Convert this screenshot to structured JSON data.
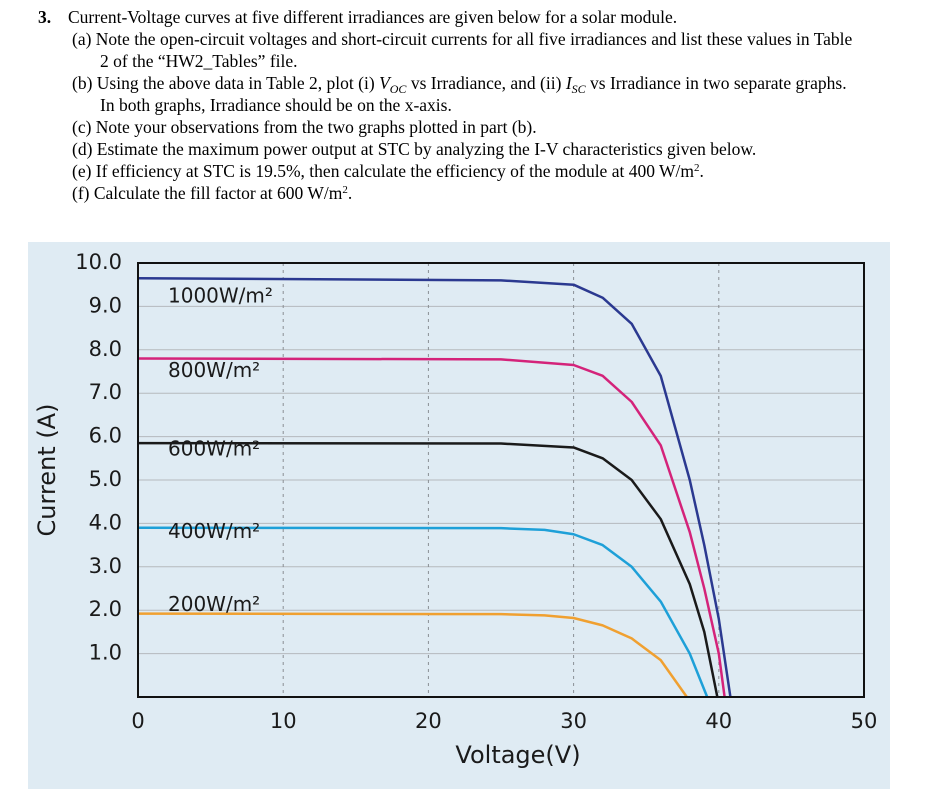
{
  "question": {
    "number": "3.",
    "intro": "Current-Voltage curves at five different irradiances are given below for a solar module.",
    "items": [
      [
        "(a) Note the open-circuit voltages and short-circuit currents for all five irradiances and list these values in Table 2 of the “HW2_Tables” file."
      ],
      [
        "(b) Using the above data in Table 2, plot (i) ",
        "V",
        "OC",
        " vs Irradiance, and (ii) ",
        "I",
        "SC",
        " vs Irradiance in two separate graphs. In both graphs, Irradiance should be on the x-axis."
      ],
      [
        "(c) Note your observations from the two graphs plotted in part (b)."
      ],
      [
        "(d) Estimate the maximum power output at STC by analyzing the I-V characteristics given below."
      ],
      [
        "(e) If efficiency at STC is 19.5%, then calculate the efficiency of the module at 400 W/m",
        "2",
        "."
      ],
      [
        "(f) Calculate the fill factor at 600 W/m",
        "2",
        "."
      ]
    ]
  },
  "chart_data": {
    "type": "line",
    "x_label": "Voltage(V)",
    "y_label": "Current (A)",
    "xlim": [
      0,
      50
    ],
    "ylim": [
      0,
      10
    ],
    "xticks": [
      0,
      10,
      20,
      30,
      40,
      50
    ],
    "yticks": [
      {
        "value": 1,
        "label": "1.0"
      },
      {
        "value": 2,
        "label": "2.0"
      },
      {
        "value": 3,
        "label": "3.0"
      },
      {
        "value": 4,
        "label": "4.0"
      },
      {
        "value": 5,
        "label": "5.0"
      },
      {
        "value": 6,
        "label": "6.0"
      },
      {
        "value": 7,
        "label": "7.0"
      },
      {
        "value": 8,
        "label": "8.0"
      },
      {
        "value": 9,
        "label": "9.0"
      },
      {
        "value": 10,
        "label": "10.0"
      }
    ],
    "grid": true,
    "series": [
      {
        "name": "1000W/m²",
        "color": "#2b3990",
        "x": [
          0,
          25,
          30,
          32,
          34,
          36,
          38,
          39,
          40,
          40.8
        ],
        "values": [
          9.65,
          9.6,
          9.5,
          9.2,
          8.6,
          7.4,
          5.0,
          3.5,
          1.8,
          0
        ]
      },
      {
        "name": "800W/m²",
        "color": "#d4237a",
        "x": [
          0,
          25,
          30,
          32,
          34,
          36,
          38,
          39,
          40,
          40.4
        ],
        "values": [
          7.8,
          7.78,
          7.65,
          7.4,
          6.8,
          5.8,
          3.8,
          2.5,
          1.0,
          0
        ]
      },
      {
        "name": "600W/m²",
        "color": "#1a1a1a",
        "x": [
          0,
          25,
          30,
          32,
          34,
          36,
          38,
          39,
          39.9
        ],
        "values": [
          5.85,
          5.84,
          5.75,
          5.5,
          5.0,
          4.1,
          2.6,
          1.5,
          0
        ]
      },
      {
        "name": "400W/m²",
        "color": "#1ea0d8",
        "x": [
          0,
          25,
          28,
          30,
          32,
          34,
          36,
          38,
          39.2
        ],
        "values": [
          3.9,
          3.89,
          3.85,
          3.75,
          3.5,
          3.0,
          2.2,
          1.0,
          0
        ]
      },
      {
        "name": "200W/m²",
        "color": "#f0a030",
        "x": [
          0,
          25,
          28,
          30,
          32,
          34,
          36,
          37.8
        ],
        "values": [
          1.92,
          1.91,
          1.88,
          1.82,
          1.65,
          1.35,
          0.85,
          0
        ]
      }
    ]
  }
}
